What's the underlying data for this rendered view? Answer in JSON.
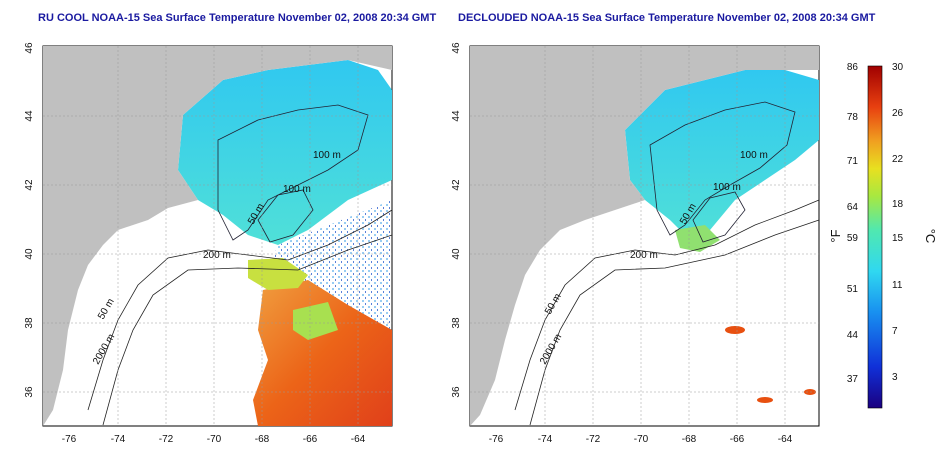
{
  "left_title": "RU COOL NOAA-15 Sea Surface Temperature November 02, 2008 20:34 GMT",
  "right_title": "DECLOUDED NOAA-15 Sea Surface Temperature November 02, 2008 20:34 GMT",
  "longitude_ticks": [
    "-76",
    "-74",
    "-72",
    "-70",
    "-68",
    "-66",
    "-64"
  ],
  "latitude_ticks": [
    "46",
    "44",
    "42",
    "40",
    "38",
    "36"
  ],
  "contour_labels": {
    "left": [
      "100 m",
      "100 m",
      "50 m",
      "200 m",
      "50 m",
      "2000 m"
    ],
    "right": [
      "100 m",
      "100 m",
      "50 m",
      "200 m",
      "50 m",
      "2000 m"
    ]
  },
  "colorbar": {
    "fahrenheit_label": "°F",
    "celsius_label": "°C",
    "fahrenheit_ticks": [
      "86",
      "78",
      "71",
      "64",
      "59",
      "51",
      "44",
      "37"
    ],
    "celsius_ticks": [
      "30",
      "26",
      "22",
      "18",
      "15",
      "11",
      "7",
      "3"
    ]
  },
  "colors": {
    "land": "#c0c0c0",
    "ocean_nodata": "#ffffff",
    "warm": "#e85010",
    "cool": "#40d8f0",
    "title": "#1a1aa0"
  }
}
